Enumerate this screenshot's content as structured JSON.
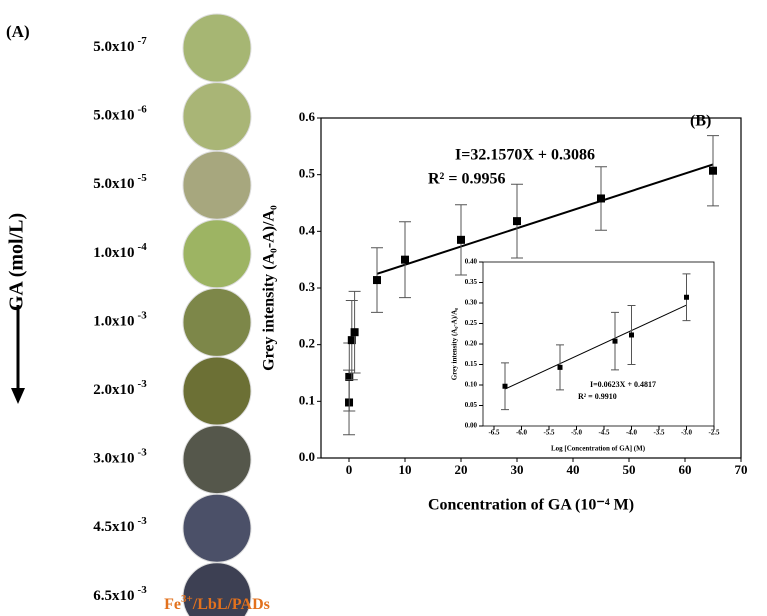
{
  "panel_a": {
    "label": "(A)",
    "axis_label": "GA (mol/L)",
    "spots": [
      {
        "base": "5.0x10",
        "exp": "-7",
        "color": "#a6b673"
      },
      {
        "base": "5.0x10",
        "exp": "-6",
        "color": "#a9b576"
      },
      {
        "base": "5.0x10",
        "exp": "-5",
        "color": "#a7a77e"
      },
      {
        "base": "1.0x10",
        "exp": "-4",
        "color": "#9db463"
      },
      {
        "base": "1.0x10",
        "exp": "-3",
        "color": "#7d8749"
      },
      {
        "base": "2.0x10",
        "exp": "-3",
        "color": "#6c7035"
      },
      {
        "base": "3.0x10",
        "exp": "-3",
        "color": "#55574b"
      },
      {
        "base": "4.5x10",
        "exp": "-3",
        "color": "#4b5068"
      },
      {
        "base": "6.5x10",
        "exp": "-3",
        "color": "#3d4053"
      }
    ],
    "caption": {
      "main": "Fe",
      "sup": "3+",
      "rest": "/LbL/PADs",
      "color": "#e2711d"
    }
  },
  "chart_data": [
    {
      "type": "scatter",
      "panel_label": "(B)",
      "x_label": "Concentration of GA (10⁻⁴ M)",
      "y_label": "Grey  intensity (A₀-A)/A₀",
      "annotations": [
        "I=32.1570X + 0.3086",
        "R² = 0.9956"
      ],
      "xlim": [
        -5,
        70
      ],
      "xticks": [
        0,
        10,
        20,
        30,
        40,
        50,
        60,
        70
      ],
      "ylim": [
        0,
        0.6
      ],
      "yticks": [
        {
          "value": 0,
          "label": "0.0"
        },
        0.1,
        0.2,
        0.3,
        0.4,
        0.5,
        0.6
      ],
      "series": [
        {
          "color": "#000000",
          "x": [
            0.005,
            0.05,
            0.5,
            1,
            5,
            10,
            20,
            30,
            45,
            65
          ],
          "values": [
            0.098,
            0.143,
            0.208,
            0.222,
            0.314,
            0.35,
            0.385,
            0.418,
            0.458,
            0.507
          ],
          "errors": [
            0.057,
            0.06,
            0.07,
            0.072,
            0.057,
            0.067,
            0.062,
            0.065,
            0.056,
            0.062
          ]
        }
      ],
      "fit": {
        "x": [
          5,
          65
        ],
        "values": [
          0.325,
          0.518
        ]
      }
    },
    {
      "type": "scatter",
      "x_label": "Log [Concentration of GA] (M)",
      "y_label": "Grey intensity (A₀-A)/A₀",
      "annotations": [
        "I=0.0623X + 0.4817",
        "R² = 0.9910"
      ],
      "xlim": [
        -6.7,
        -2.5
      ],
      "xticks": [
        -6.5,
        {
          "value": -6,
          "label": "-6.0"
        },
        -5.5,
        {
          "value": -5,
          "label": "-5.0"
        },
        -4.5,
        {
          "value": -4,
          "label": "-4.0"
        },
        -3.5,
        {
          "value": -3,
          "label": "-3.0"
        },
        -2.5
      ],
      "ylim": [
        0,
        0.4
      ],
      "yticks": [
        {
          "value": 0,
          "label": "0.00"
        },
        0.05,
        {
          "value": 0.1,
          "label": "0.10"
        },
        0.15,
        {
          "value": 0.2,
          "label": "0.20"
        },
        0.25,
        {
          "value": 0.3,
          "label": "0.30"
        },
        0.35,
        {
          "value": 0.4,
          "label": "0.40"
        }
      ],
      "series": [
        {
          "color": "#000000",
          "x": [
            -6.3,
            -5.3,
            -4.3,
            -4.0,
            -3.0
          ],
          "values": [
            0.097,
            0.143,
            0.207,
            0.222,
            0.314
          ],
          "errors": [
            0.057,
            0.055,
            0.07,
            0.072,
            0.057
          ]
        }
      ],
      "fit": {
        "x": [
          -6.3,
          -3.0
        ],
        "values": [
          0.09,
          0.295
        ]
      }
    }
  ]
}
